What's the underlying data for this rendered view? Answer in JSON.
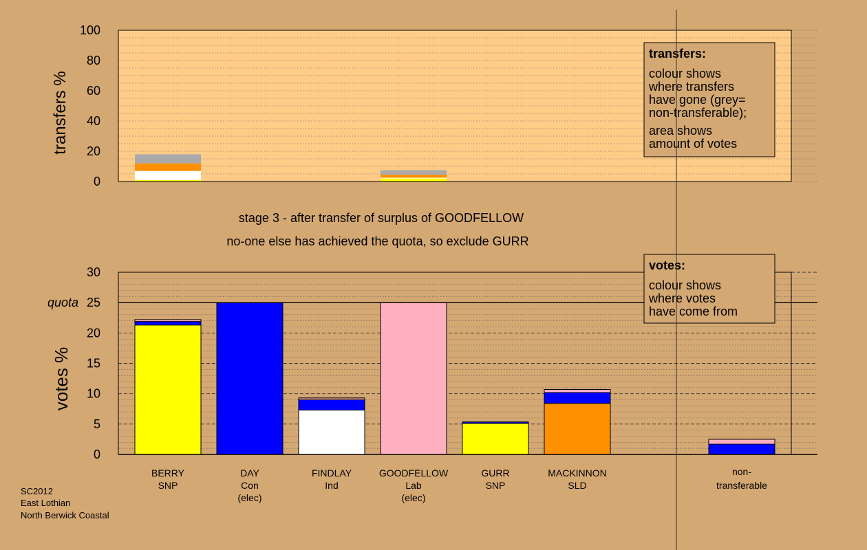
{
  "chart_data": [
    {
      "type": "bar",
      "stacked": true,
      "panel": "transfers",
      "ylabel": "transfers %",
      "ylim": [
        0,
        100
      ],
      "yticks": [
        0,
        20,
        40,
        60,
        80,
        100
      ],
      "grid": "dotted",
      "categories": [
        "BERRY",
        "DAY",
        "FINDLAY",
        "GOODFELLOW",
        "GURR",
        "MACKINNON",
        "non-transferable"
      ],
      "stacks": [
        [
          {
            "party": "SNP",
            "value": 1.0,
            "color": "#ffff00"
          },
          {
            "party": "Ind",
            "value": 6.0,
            "color": "#ffffff"
          },
          {
            "party": "SLD",
            "value": 5.0,
            "color": "#ff9000"
          },
          {
            "party": "Non-transferable",
            "value": 6.0,
            "color": "#aaaaaa"
          }
        ],
        [],
        [],
        [
          {
            "party": "SNP",
            "value": 2.0,
            "color": "#ffff00"
          },
          {
            "party": "Ind",
            "value": 0.5,
            "color": "#ffffff"
          },
          {
            "party": "SLD",
            "value": 2.0,
            "color": "#ff9000"
          },
          {
            "party": "Non-transferable",
            "value": 3.0,
            "color": "#aaaaaa"
          }
        ],
        [],
        [],
        []
      ],
      "legend_box": {
        "title": "transfers:",
        "lines1": [
          "colour shows",
          "where transfers",
          "have gone (grey=",
          "non-transferable);"
        ],
        "lines2": [
          "area shows",
          "amount of votes"
        ]
      }
    },
    {
      "type": "bar",
      "stacked": true,
      "panel": "votes",
      "ylabel": "votes %",
      "ylim": [
        0,
        30
      ],
      "yticks": [
        0,
        5,
        10,
        15,
        20,
        25,
        30
      ],
      "quota": 25,
      "quota_label": "quota",
      "grid": "dashed",
      "categories": [
        "BERRY",
        "DAY",
        "FINDLAY",
        "GOODFELLOW",
        "GURR",
        "MACKINNON",
        "non-transferable"
      ],
      "stacks": [
        [
          {
            "source": "SNP",
            "value": 21.3,
            "color": "#ffff00"
          },
          {
            "source": "Con",
            "value": 0.6,
            "color": "#0000ff"
          },
          {
            "source": "Lab",
            "value": 0.3,
            "color": "#ffb0c0"
          }
        ],
        [
          {
            "source": "Con",
            "value": 25.0,
            "color": "#0000ff"
          }
        ],
        [
          {
            "source": "Ind",
            "value": 7.3,
            "color": "#ffffff"
          },
          {
            "source": "Con",
            "value": 1.7,
            "color": "#0000ff"
          },
          {
            "source": "Lab",
            "value": 0.3,
            "color": "#ffb0c0"
          }
        ],
        [
          {
            "source": "Lab",
            "value": 25.0,
            "color": "#ffb0c0"
          }
        ],
        [
          {
            "source": "SNP",
            "value": 5.1,
            "color": "#ffff00"
          },
          {
            "source": "Con",
            "value": 0.25,
            "color": "#0000ff"
          }
        ],
        [
          {
            "source": "SLD",
            "value": 8.4,
            "color": "#ff9000"
          },
          {
            "source": "Con",
            "value": 1.8,
            "color": "#0000ff"
          },
          {
            "source": "Lab",
            "value": 0.5,
            "color": "#ffb0c0"
          }
        ],
        [
          {
            "source": "Con",
            "value": 1.7,
            "color": "#0000ff"
          },
          {
            "source": "Lab",
            "value": 0.8,
            "color": "#ffb0c0"
          }
        ]
      ],
      "legend_box": {
        "title": "votes:",
        "lines": [
          "colour shows",
          "where votes",
          "have come from"
        ]
      }
    }
  ],
  "candidates": [
    {
      "name": "BERRY",
      "party": "SNP",
      "note": ""
    },
    {
      "name": "DAY",
      "party": "Con",
      "note": "(elec)"
    },
    {
      "name": "FINDLAY",
      "party": "Ind",
      "note": ""
    },
    {
      "name": "GOODFELLOW",
      "party": "Lab",
      "note": "(elec)"
    },
    {
      "name": "GURR",
      "party": "SNP",
      "note": ""
    },
    {
      "name": "MACKINNON",
      "party": "SLD",
      "note": ""
    }
  ],
  "non_transferable_label": [
    "non-",
    "transferable"
  ],
  "stage_caption": "stage 3 - after transfer of surplus of GOODFELLOW",
  "action_caption": "no-one else has achieved the quota, so exclude GURR",
  "footer": [
    "SC2012",
    "East Lothian",
    "North Berwick Coastal"
  ],
  "colors": {
    "background": "#d4a873",
    "plot_background": "#ffcc88",
    "SNP": "#ffff00",
    "Con": "#0000ff",
    "Ind": "#ffffff",
    "Lab": "#ffb0c0",
    "SLD": "#ff9000",
    "non_transferable": "#aaaaaa"
  }
}
